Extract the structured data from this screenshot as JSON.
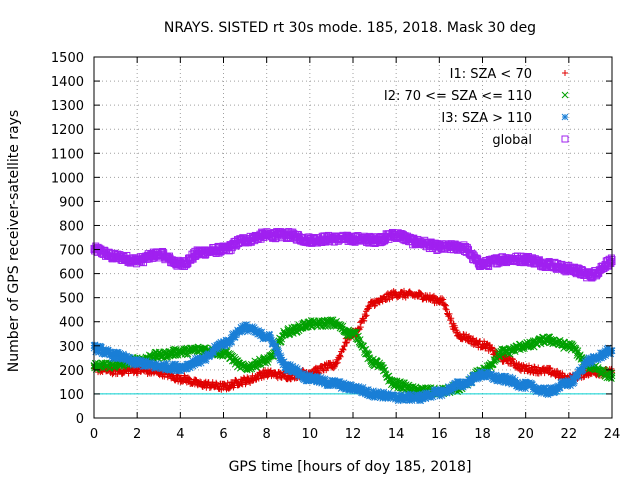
{
  "chart_data": {
    "type": "scatter",
    "title": "NRAYS. SISTED rt 30s mode. 185, 2018. Mask 30 deg",
    "xlabel": "GPS time [hours of doy 185, 2018]",
    "ylabel": "Number of GPS receiver-satellite rays",
    "xlim": [
      0,
      24
    ],
    "ylim": [
      0,
      1500
    ],
    "xticks": [
      "0",
      "2",
      "4",
      "6",
      "8",
      "10",
      "12",
      "14",
      "16",
      "18",
      "20",
      "22",
      "24"
    ],
    "yticks": [
      "0",
      "100",
      "200",
      "300",
      "400",
      "500",
      "600",
      "700",
      "800",
      "900",
      "1000",
      "1100",
      "1200",
      "1300",
      "1400",
      "1500"
    ],
    "grid": true,
    "legend_position": "top-right",
    "threshold_line": 100,
    "series": [
      {
        "name": "I1: SZA < 70",
        "marker": "+",
        "color": "#e00000",
        "x": [
          0,
          1,
          2,
          3,
          4,
          5,
          6,
          7,
          8,
          9,
          10,
          11,
          12,
          13,
          14,
          15,
          16,
          17,
          18,
          19,
          20,
          21,
          22,
          23,
          24
        ],
        "values": [
          205,
          195,
          200,
          190,
          165,
          140,
          130,
          155,
          185,
          175,
          190,
          215,
          350,
          480,
          515,
          510,
          490,
          340,
          305,
          245,
          205,
          195,
          165,
          190,
          190
        ]
      },
      {
        "name": "I2: 70 <= SZA <= 110",
        "marker": "x",
        "color": "#00a000",
        "x": [
          0,
          1,
          2,
          3,
          4,
          5,
          6,
          7,
          8,
          9,
          10,
          11,
          12,
          13,
          14,
          15,
          16,
          17,
          18,
          19,
          20,
          21,
          22,
          23,
          24
        ],
        "values": [
          215,
          220,
          240,
          260,
          275,
          285,
          270,
          210,
          240,
          360,
          390,
          395,
          350,
          230,
          140,
          115,
          110,
          125,
          195,
          275,
          300,
          325,
          300,
          215,
          175
        ]
      },
      {
        "name": "I3: SZA > 110",
        "marker": "*",
        "color": "#1a7fd6",
        "x": [
          0,
          1,
          2,
          3,
          4,
          5,
          6,
          7,
          8,
          9,
          10,
          11,
          12,
          13,
          14,
          15,
          16,
          17,
          18,
          19,
          20,
          21,
          22,
          23,
          24
        ],
        "values": [
          290,
          260,
          230,
          215,
          210,
          240,
          310,
          375,
          340,
          210,
          165,
          145,
          125,
          100,
          85,
          85,
          105,
          140,
          180,
          160,
          135,
          110,
          145,
          240,
          280
        ]
      },
      {
        "name": "global",
        "marker": "square",
        "color": "#a020f0",
        "x": [
          0,
          1,
          2,
          3,
          4,
          5,
          6,
          7,
          8,
          9,
          10,
          11,
          12,
          13,
          14,
          15,
          16,
          17,
          18,
          19,
          20,
          21,
          22,
          23,
          24
        ],
        "values": [
          700,
          670,
          655,
          680,
          640,
          690,
          700,
          740,
          760,
          760,
          740,
          745,
          745,
          740,
          760,
          730,
          710,
          710,
          640,
          660,
          660,
          640,
          620,
          595,
          650
        ]
      }
    ]
  }
}
